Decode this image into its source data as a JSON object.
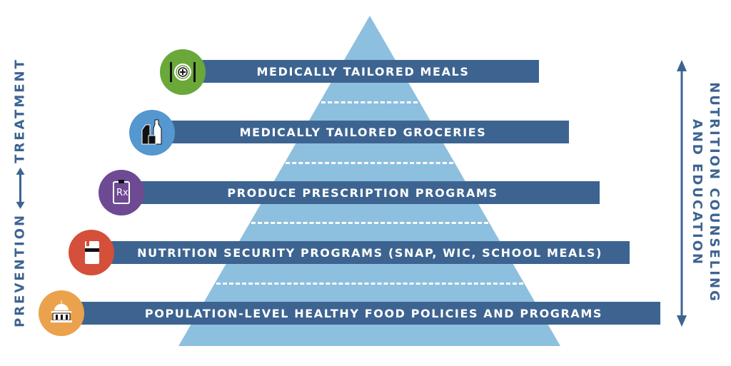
{
  "colors": {
    "bar": "#3d6491",
    "pyramid": "#8dbfdf",
    "arrow": "#3d6491"
  },
  "tiers": [
    {
      "label": "MEDICALLY TAILORED MEALS",
      "icon": "plate-cutlery-icon",
      "color": "#6aa83a"
    },
    {
      "label": "MEDICALLY TAILORED GROCERIES",
      "icon": "grocery-cartons-icon",
      "color": "#5597cf"
    },
    {
      "label": "PRODUCE PRESCRIPTION PROGRAMS",
      "icon": "rx-clipboard-icon",
      "color": "#6e4a93"
    },
    {
      "label": "NUTRITION SECURITY PROGRAMS (SNAP, WIC, SCHOOL MEALS)",
      "icon": "card-icon",
      "color": "#d4503a"
    },
    {
      "label": "POPULATION-LEVEL HEALTHY FOOD POLICIES AND PROGRAMS",
      "icon": "capitol-building-icon",
      "color": "#eba24c"
    }
  ],
  "left_axis": {
    "low": "PREVENTION",
    "high": "TREATMENT"
  },
  "right_axis": {
    "line1": "NUTRITION COUNSELING",
    "line2": "AND EDUCATION"
  }
}
